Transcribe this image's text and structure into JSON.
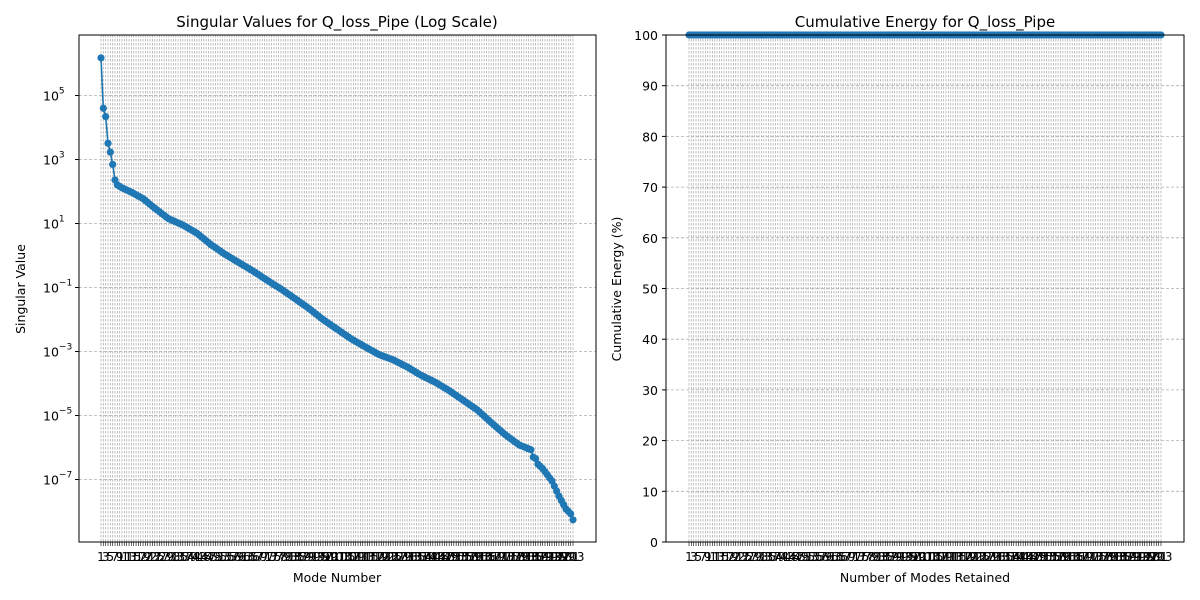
{
  "chart_data": [
    {
      "type": "line",
      "title": "Singular Values for Q_loss_Pipe (Log Scale)",
      "xlabel": "Mode Number",
      "ylabel": "Singular Value",
      "yscale": "log",
      "ylim": [
        3e-09,
        7000000.0
      ],
      "grid": true,
      "marker": "circle",
      "color": "#1f77b4",
      "y_tick_labels": [
        {
          "base": "10",
          "exp": "5",
          "value": 100000
        },
        {
          "base": "10",
          "exp": "3",
          "value": 1000
        },
        {
          "base": "10",
          "exp": "1",
          "value": 10
        },
        {
          "base": "10",
          "exp": "−1",
          "value": 0.1
        },
        {
          "base": "10",
          "exp": "−3",
          "value": 0.001
        },
        {
          "base": "10",
          "exp": "−5",
          "value": 1e-05
        },
        {
          "base": "10",
          "exp": "−7",
          "value": 1e-07
        }
      ],
      "x_max": 183,
      "series_anchors": [
        [
          1,
          1500000
        ],
        [
          2,
          40000
        ],
        [
          3,
          22000
        ],
        [
          4,
          3200
        ],
        [
          5,
          1700
        ],
        [
          6,
          700
        ],
        [
          7,
          230
        ],
        [
          8,
          160
        ],
        [
          10,
          130
        ],
        [
          14,
          95
        ],
        [
          19,
          60
        ],
        [
          24,
          30
        ],
        [
          30,
          14
        ],
        [
          36,
          9
        ],
        [
          42,
          5
        ],
        [
          48,
          2.2
        ],
        [
          54,
          1.1
        ],
        [
          60,
          0.6
        ],
        [
          66,
          0.33
        ],
        [
          72,
          0.17
        ],
        [
          78,
          0.09
        ],
        [
          84,
          0.045
        ],
        [
          90,
          0.022
        ],
        [
          96,
          0.01
        ],
        [
          102,
          0.005
        ],
        [
          108,
          0.0025
        ],
        [
          114,
          0.0014
        ],
        [
          120,
          0.0008
        ],
        [
          126,
          0.00055
        ],
        [
          132,
          0.00033
        ],
        [
          138,
          0.00018
        ],
        [
          144,
          0.00011
        ],
        [
          150,
          6e-05
        ],
        [
          156,
          3e-05
        ],
        [
          162,
          1.5e-05
        ],
        [
          168,
          6e-06
        ],
        [
          174,
          2.5e-06
        ],
        [
          180,
          1.2e-06
        ],
        [
          185,
          8.5e-07
        ],
        [
          186,
          5e-07
        ],
        [
          187,
          4.5e-07
        ],
        [
          188,
          3e-07
        ],
        [
          190,
          2.2e-07
        ],
        [
          194,
          9e-08
        ],
        [
          197,
          3e-08
        ],
        [
          200,
          1.2e-08
        ],
        [
          202,
          8.5e-09
        ],
        [
          203,
          5.5e-09
        ]
      ],
      "x_tick_labels": [
        "1",
        "3",
        "5",
        "7"
      ]
    },
    {
      "type": "line",
      "title": "Cumulative Energy for Q_loss_Pipe",
      "xlabel": "Number of Modes Retained",
      "ylabel": "Cumulative Energy (%)",
      "ylim": [
        0,
        100
      ],
      "grid": true,
      "marker": "circle",
      "color": "#1f77b4",
      "y_ticks": [
        0,
        10,
        20,
        30,
        40,
        50,
        60,
        70,
        80,
        90,
        100
      ],
      "values_constant": 100,
      "x_tick_labels": [
        "1",
        "3",
        "5",
        "7"
      ]
    }
  ]
}
